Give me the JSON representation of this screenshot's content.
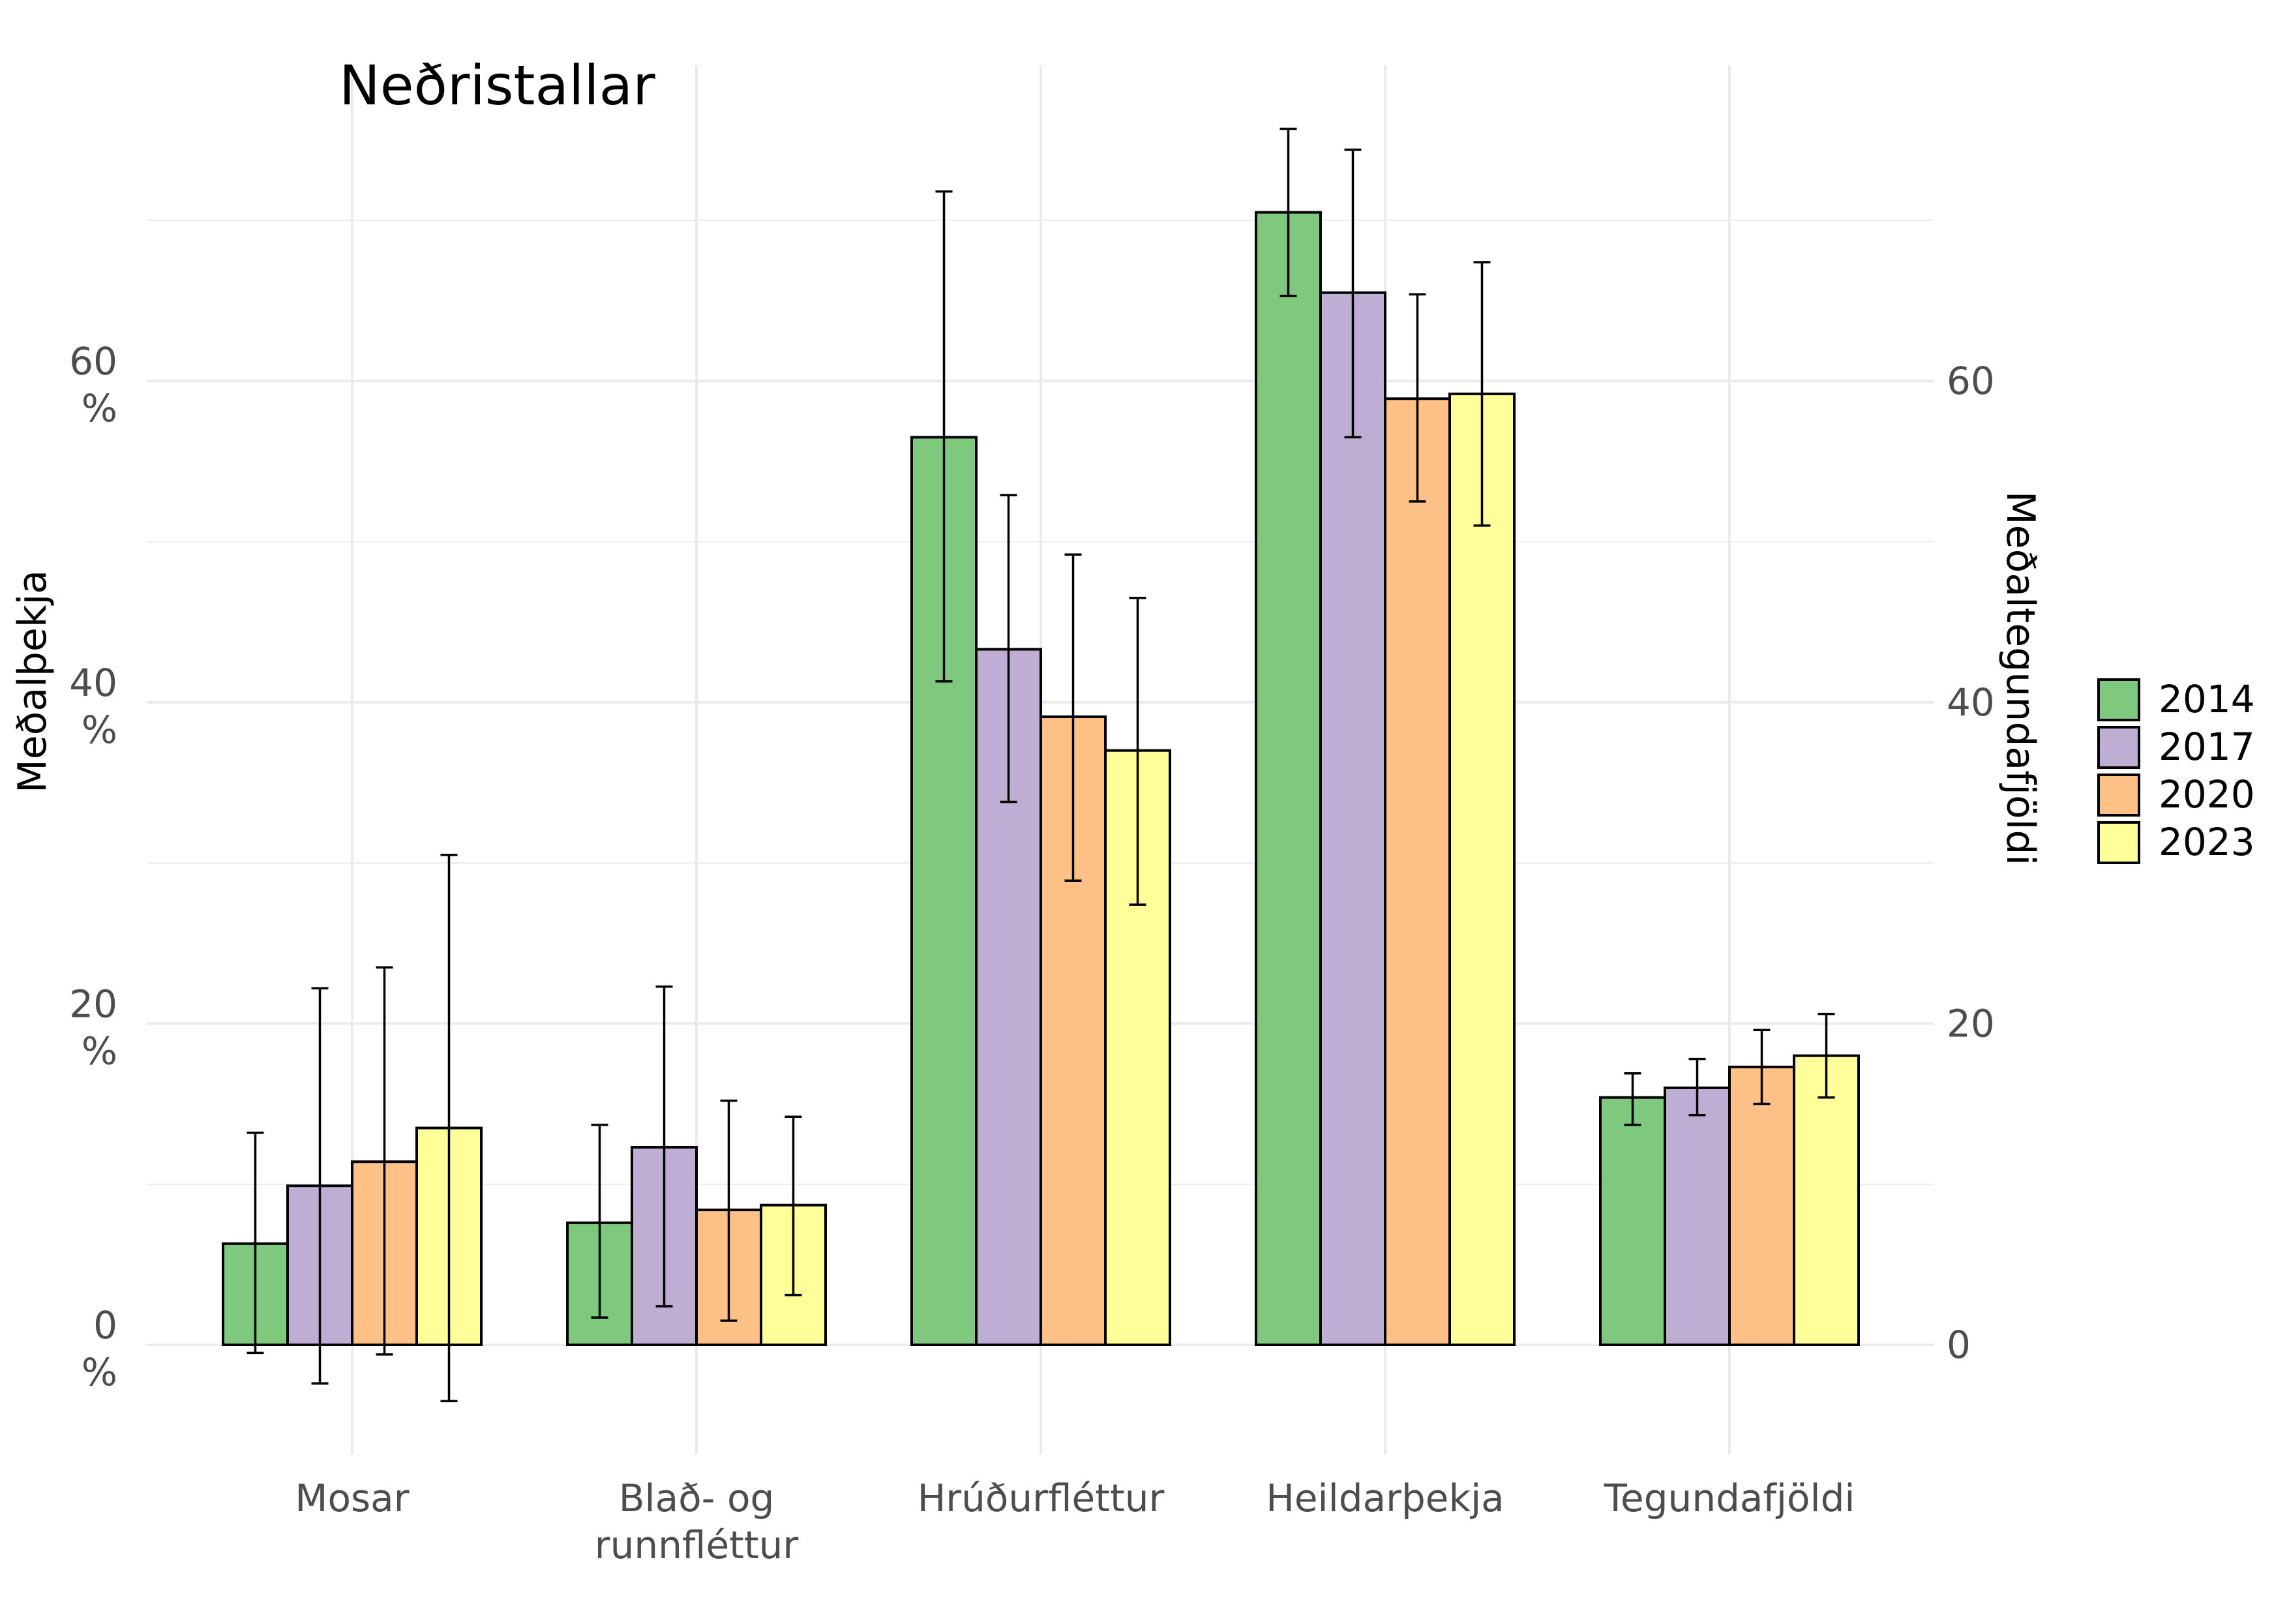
{
  "chart_data": {
    "type": "bar",
    "title": "Neðristallar",
    "ylabel": "Meðalþekja",
    "y2label": "Meðaltegundafjöldi",
    "xlabel": "",
    "categories": [
      [
        "Mosar"
      ],
      [
        "Blað- og",
        "runnfléttur"
      ],
      [
        "Hrúðurfléttur"
      ],
      [
        "Heildarþekja"
      ],
      [
        "Tegundafjöldi"
      ]
    ],
    "ylim": [
      -7,
      80
    ],
    "yticks": [
      0,
      20,
      40,
      60
    ],
    "ytick_labels": [
      [
        "0",
        "%"
      ],
      [
        "20",
        "%"
      ],
      [
        "40",
        "%"
      ],
      [
        "60",
        "%"
      ]
    ],
    "y2ticks": [
      0,
      20,
      40,
      60
    ],
    "y2tick_labels": [
      "0",
      "20",
      "40",
      "60"
    ],
    "grid": true,
    "legend_position": "right",
    "series": [
      {
        "name": "2014",
        "color": "#7fc97f",
        "values": [
          6.3,
          7.6,
          56.5,
          70.5,
          15.4
        ],
        "err_low": [
          -0.5,
          1.7,
          41.3,
          65.3,
          13.7
        ],
        "err_high": [
          13.2,
          13.7,
          71.8,
          75.7,
          16.9
        ]
      },
      {
        "name": "2017",
        "color": "#beaed4",
        "values": [
          9.9,
          12.3,
          43.3,
          65.5,
          16.0
        ],
        "err_low": [
          -2.4,
          2.4,
          33.8,
          56.5,
          14.3
        ],
        "err_high": [
          22.2,
          22.3,
          52.9,
          74.4,
          17.8
        ]
      },
      {
        "name": "2020",
        "color": "#fdc086",
        "values": [
          11.4,
          8.4,
          39.1,
          58.9,
          17.3
        ],
        "err_low": [
          -0.6,
          1.5,
          28.9,
          52.5,
          15.0
        ],
        "err_high": [
          23.5,
          15.2,
          49.2,
          65.4,
          19.6
        ]
      },
      {
        "name": "2023",
        "color": "#ffff99",
        "values": [
          13.5,
          8.7,
          37.0,
          59.2,
          18.0
        ],
        "err_low": [
          -3.5,
          3.1,
          27.4,
          51.0,
          15.4
        ],
        "err_high": [
          30.5,
          14.2,
          46.5,
          67.4,
          20.6
        ]
      }
    ]
  }
}
